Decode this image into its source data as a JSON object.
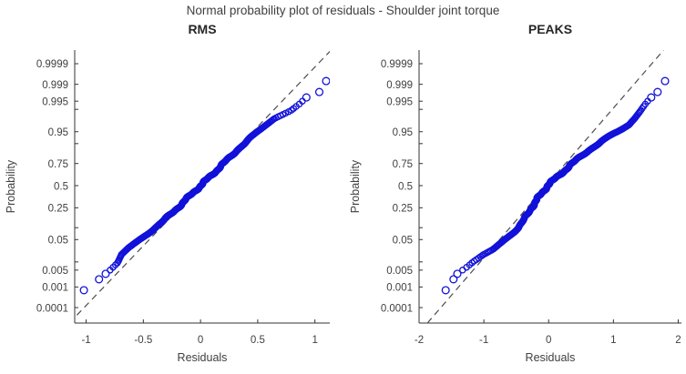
{
  "figure": {
    "title": "Normal probability plot of residuals - Shoulder joint torque"
  },
  "colors": {
    "marker": "#1212d9",
    "refline": "#4d4d4d",
    "axis": "#333333",
    "tick_label": "#3f3f3f",
    "subplot_title": "#262626"
  },
  "chart_data": [
    {
      "type": "scatter",
      "variant": "normal-probability-plot",
      "title": "RMS",
      "xlabel": "Residuals",
      "ylabel": "Probability",
      "xlim": [
        -1.1,
        1.13
      ],
      "ylim_z": [
        -4.19,
        4.135
      ],
      "xticks": [
        {
          "v": -1,
          "label": "-1"
        },
        {
          "v": -0.5,
          "label": "-0.5"
        },
        {
          "v": 0,
          "label": "0"
        },
        {
          "v": 0.5,
          "label": "0.5"
        },
        {
          "v": 1,
          "label": "1"
        }
      ],
      "yticks": [
        {
          "p": 0.9999,
          "label": "0.9999",
          "labeled": true
        },
        {
          "p": 0.999,
          "label": "0.999",
          "labeled": true
        },
        {
          "p": 0.995,
          "label": "0.995",
          "labeled": true
        },
        {
          "p": 0.99,
          "label": "0.99",
          "labeled": false
        },
        {
          "p": 0.95,
          "label": "0.95",
          "labeled": true
        },
        {
          "p": 0.9,
          "label": "0.9",
          "labeled": false
        },
        {
          "p": 0.75,
          "label": "0.75",
          "labeled": true
        },
        {
          "p": 0.5,
          "label": "0.5",
          "labeled": true
        },
        {
          "p": 0.25,
          "label": "0.25",
          "labeled": true
        },
        {
          "p": 0.1,
          "label": "0.1",
          "labeled": false
        },
        {
          "p": 0.05,
          "label": "0.05",
          "labeled": true
        },
        {
          "p": 0.01,
          "label": "0.01",
          "labeled": false
        },
        {
          "p": 0.005,
          "label": "0.005",
          "labeled": true
        },
        {
          "p": 0.001,
          "label": "0.001",
          "labeled": true
        },
        {
          "p": 0.0001,
          "label": "0.0001",
          "labeled": true
        }
      ],
      "n_points": 700,
      "refline": {
        "slope": 0.275,
        "intercept": 0.005
      },
      "quantile_anchors_zx": [
        [
          -3.35,
          -1.07
        ],
        [
          -3.0,
          -0.96
        ],
        [
          -2.86,
          -0.89
        ],
        [
          -2.6,
          -0.8
        ],
        [
          -2.35,
          -0.73
        ],
        [
          -2.1,
          -0.7
        ],
        [
          -1.9,
          -0.64
        ],
        [
          -1.7,
          -0.56
        ],
        [
          -1.45,
          -0.46
        ],
        [
          -1.2,
          -0.36
        ],
        [
          -0.9,
          -0.27
        ],
        [
          -0.674,
          -0.2
        ],
        [
          -0.4,
          -0.12
        ],
        [
          0.0,
          0.0
        ],
        [
          0.4,
          0.12
        ],
        [
          0.674,
          0.2
        ],
        [
          0.9,
          0.27
        ],
        [
          1.2,
          0.35
        ],
        [
          1.45,
          0.43
        ],
        [
          1.65,
          0.5
        ],
        [
          1.85,
          0.58
        ],
        [
          2.05,
          0.66
        ],
        [
          2.28,
          0.8
        ],
        [
          2.5,
          0.88
        ],
        [
          2.7,
          0.94
        ],
        [
          2.9,
          1.08
        ],
        [
          3.2,
          1.11
        ]
      ]
    },
    {
      "type": "scatter",
      "variant": "normal-probability-plot",
      "title": "PEAKS",
      "xlabel": "Residuals",
      "ylabel": "Probability",
      "xlim": [
        -2.0,
        2.05
      ],
      "ylim_z": [
        -4.19,
        4.135
      ],
      "xticks": [
        {
          "v": -2,
          "label": "-2"
        },
        {
          "v": -1,
          "label": "-1"
        },
        {
          "v": 0,
          "label": "0"
        },
        {
          "v": 1,
          "label": "1"
        },
        {
          "v": 2,
          "label": "2"
        }
      ],
      "yticks": [
        {
          "p": 0.9999,
          "label": "0.9999",
          "labeled": true
        },
        {
          "p": 0.999,
          "label": "0.999",
          "labeled": true
        },
        {
          "p": 0.995,
          "label": "0.995",
          "labeled": true
        },
        {
          "p": 0.99,
          "label": "0.99",
          "labeled": false
        },
        {
          "p": 0.95,
          "label": "0.95",
          "labeled": true
        },
        {
          "p": 0.9,
          "label": "0.9",
          "labeled": false
        },
        {
          "p": 0.75,
          "label": "0.75",
          "labeled": true
        },
        {
          "p": 0.5,
          "label": "0.5",
          "labeled": true
        },
        {
          "p": 0.25,
          "label": "0.25",
          "labeled": true
        },
        {
          "p": 0.1,
          "label": "0.1",
          "labeled": false
        },
        {
          "p": 0.05,
          "label": "0.05",
          "labeled": true
        },
        {
          "p": 0.01,
          "label": "0.01",
          "labeled": false
        },
        {
          "p": 0.005,
          "label": "0.005",
          "labeled": true
        },
        {
          "p": 0.001,
          "label": "0.001",
          "labeled": true
        },
        {
          "p": 0.0001,
          "label": "0.0001",
          "labeled": true
        }
      ],
      "n_points": 700,
      "refline": {
        "slope": 0.438,
        "intercept": -0.036
      },
      "quantile_anchors_zx": [
        [
          -3.35,
          -1.65
        ],
        [
          -2.95,
          -1.5
        ],
        [
          -2.7,
          -1.42
        ],
        [
          -2.5,
          -1.28
        ],
        [
          -2.3,
          -1.16
        ],
        [
          -2.1,
          -1.02
        ],
        [
          -1.95,
          -0.88
        ],
        [
          -1.7,
          -0.72
        ],
        [
          -1.5,
          -0.6
        ],
        [
          -1.28,
          -0.46
        ],
        [
          -1.0,
          -0.36
        ],
        [
          -0.674,
          -0.27
        ],
        [
          -0.35,
          -0.15
        ],
        [
          0.0,
          -0.02
        ],
        [
          0.35,
          0.18
        ],
        [
          0.7,
          0.38
        ],
        [
          0.94,
          0.53
        ],
        [
          1.2,
          0.7
        ],
        [
          1.36,
          0.81
        ],
        [
          1.55,
          0.97
        ],
        [
          1.7,
          1.12
        ],
        [
          1.85,
          1.25
        ],
        [
          2.05,
          1.35
        ],
        [
          2.25,
          1.43
        ],
        [
          2.45,
          1.5
        ],
        [
          2.65,
          1.58
        ],
        [
          2.85,
          1.7
        ],
        [
          3.2,
          1.82
        ]
      ]
    }
  ]
}
